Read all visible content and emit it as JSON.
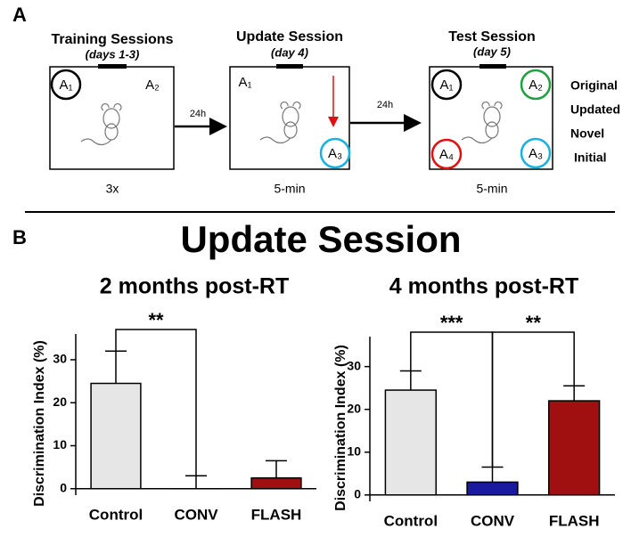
{
  "panel_a": {
    "label": "A",
    "sessions": [
      {
        "title": "Training Sessions",
        "subtitle": "(days 1-3)",
        "duration": "3x",
        "objects": [
          "A₁",
          "A₂"
        ]
      },
      {
        "title": "Update Session",
        "subtitle": "(day 4)",
        "duration": "5-min",
        "objects": [
          "A₁",
          "A₃"
        ]
      },
      {
        "title": "Test Session",
        "subtitle": "(day 5)",
        "duration": "5-min",
        "objects": [
          "A₁",
          "A₂",
          "A₄",
          "A₃"
        ]
      }
    ],
    "intervals": [
      "24h",
      "24h"
    ],
    "legend": [
      {
        "text": "Original",
        "color": "#000000"
      },
      {
        "text": "Updated",
        "color": "#1e90e0"
      },
      {
        "text": "Novel",
        "color": "#e01010"
      },
      {
        "text": "Initial",
        "color": "#20a040"
      }
    ]
  },
  "panel_b": {
    "label": "B",
    "title": "Update Session"
  },
  "chart_data": [
    {
      "type": "bar",
      "title": "2 months post-RT",
      "ylabel": "Discrimination Index (%)",
      "categories": [
        "Control",
        "CONV",
        "FLASH"
      ],
      "values": [
        24.5,
        0,
        2.5
      ],
      "errors": [
        7.5,
        3,
        4
      ],
      "colors": [
        "#e6e6e6",
        "#1a1aa0",
        "#a01010"
      ],
      "ylim": [
        -1.5,
        36
      ],
      "yticks": [
        0,
        10,
        20,
        30
      ],
      "annotations": [
        {
          "text": "**",
          "categories": [
            "Control",
            "CONV"
          ]
        }
      ]
    },
    {
      "type": "bar",
      "title": "4 months post-RT",
      "ylabel": "Discrimination Index (%)",
      "categories": [
        "Control",
        "CONV",
        "FLASH"
      ],
      "values": [
        24.5,
        3,
        22
      ],
      "errors": [
        4.5,
        3.5,
        3.5
      ],
      "colors": [
        "#e6e6e6",
        "#1a1aa0",
        "#a01010"
      ],
      "ylim": [
        -1.5,
        37
      ],
      "yticks": [
        0,
        10,
        20,
        30
      ],
      "annotations": [
        {
          "text": "***",
          "categories": [
            "Control",
            "CONV"
          ]
        },
        {
          "text": "**",
          "categories": [
            "CONV",
            "FLASH"
          ]
        }
      ]
    }
  ]
}
